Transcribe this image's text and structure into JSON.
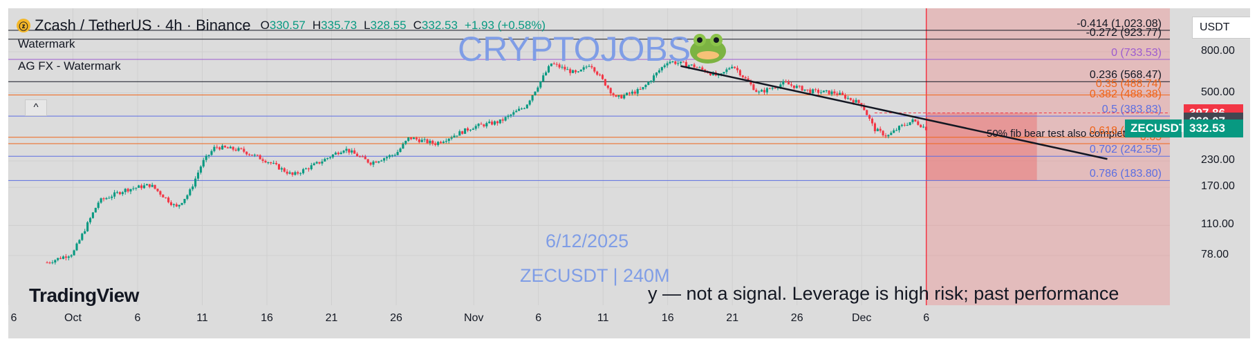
{
  "header": {
    "symbol": "Zcash / TetherUS · 4h · Binance",
    "coin_icon": "zcash-coin-icon",
    "ohlc": [
      {
        "key": "O",
        "value": "330.57"
      },
      {
        "key": "H",
        "value": "335.73"
      },
      {
        "key": "L",
        "value": "328.55"
      },
      {
        "key": "C",
        "value": "332.53"
      },
      {
        "key": "",
        "value": "+1.93 (+0.58%)"
      }
    ]
  },
  "indicators": [
    "Watermark",
    "AG FX - Watermark"
  ],
  "collapse_glyph": "^",
  "watermarks": {
    "brand": "CRYPTOJOBS",
    "brand_icon": "frog-icon",
    "date": "6/12/2025",
    "pair": "ZECUSDT | 240M",
    "disclaimer": "y — not a signal. Leverage is high risk; past performance",
    "logo": "TradingView"
  },
  "currency_button": "USDT",
  "colors": {
    "up": "#089981",
    "down": "#f23645",
    "fib_blue": "#5b6ee1",
    "fib_orange": "#f06418",
    "fib_purple": "#9c5bd0",
    "zone": "#f08080"
  },
  "badges": [
    {
      "label": "397.86",
      "value": 397.86,
      "color": "#f23645"
    },
    {
      "label": "360.07",
      "value": 360.07,
      "color": "#434651"
    },
    {
      "label": "332.53",
      "value": 332.53,
      "color": "#089981",
      "tag": "ZECUSDT"
    }
  ],
  "annotation": "50% fib bear test also completed",
  "chart_data": {
    "type": "candlestick",
    "y_scale": "log",
    "y_ticks": [
      {
        "label": "800.00",
        "value": 800
      },
      {
        "label": "500.00",
        "value": 500
      },
      {
        "label": "230.00",
        "value": 230
      },
      {
        "label": "170.00",
        "value": 170
      },
      {
        "label": "110.00",
        "value": 110
      },
      {
        "label": "78.00",
        "value": 78
      }
    ],
    "x_ticks": [
      "6",
      "Oct",
      "6",
      "11",
      "16",
      "21",
      "26",
      "Nov",
      "6",
      "11",
      "16",
      "21",
      "26",
      "Dec",
      "6"
    ],
    "x_dates": [
      "2025-09-26",
      "2025-10-01",
      "2025-10-06",
      "2025-10-11",
      "2025-10-16",
      "2025-10-21",
      "2025-10-26",
      "2025-11-01",
      "2025-11-06",
      "2025-11-11",
      "2025-11-16",
      "2025-11-21",
      "2025-11-26",
      "2025-12-01",
      "2025-12-06"
    ],
    "last_date": "2025-12-06",
    "fib_levels": [
      {
        "label": "-0.414 (1,023.08)",
        "value": 1023.08,
        "color": "#131722"
      },
      {
        "label": "-0.272 (923.77)",
        "value": 923.77,
        "color": "#131722"
      },
      {
        "label": "0 (733.53)",
        "value": 733.53,
        "color": "#9c5bd0"
      },
      {
        "label": "0.236 (568.47)",
        "value": 568.47,
        "color": "#131722"
      },
      {
        "label": "0.35 (488.74)",
        "value": 488.74,
        "color": "#f06418"
      },
      {
        "label": "0.382 (488.38)",
        "value": 488.38,
        "color": "#f06418"
      },
      {
        "label": "0.5 (383.83)",
        "value": 383.83,
        "color": "#5b6ee1"
      },
      {
        "label": "0.618 (301.30)",
        "value": 301.3,
        "color": "#f06418"
      },
      {
        "label": "0.65",
        "value": 280,
        "color": "#f06418"
      },
      {
        "label": "0.702 (242.55)",
        "value": 242.55,
        "color": "#5b6ee1"
      },
      {
        "label": "0.786 (183.80)",
        "value": 183.8,
        "color": "#5b6ee1"
      }
    ],
    "trendline": [
      {
        "date": "2025-11-17",
        "value": 680
      },
      {
        "date": "2025-12-20",
        "value": 235
      }
    ],
    "price_path": [
      {
        "date": "2025-09-29",
        "value": 72
      },
      {
        "date": "2025-10-01",
        "value": 80
      },
      {
        "date": "2025-10-03",
        "value": 145
      },
      {
        "date": "2025-10-05",
        "value": 165
      },
      {
        "date": "2025-10-07",
        "value": 175
      },
      {
        "date": "2025-10-09",
        "value": 135
      },
      {
        "date": "2025-10-10",
        "value": 160
      },
      {
        "date": "2025-10-11",
        "value": 225
      },
      {
        "date": "2025-10-12",
        "value": 270
      },
      {
        "date": "2025-10-14",
        "value": 260
      },
      {
        "date": "2025-10-16",
        "value": 230
      },
      {
        "date": "2025-10-18",
        "value": 195
      },
      {
        "date": "2025-10-20",
        "value": 225
      },
      {
        "date": "2025-10-22",
        "value": 265
      },
      {
        "date": "2025-10-24",
        "value": 225
      },
      {
        "date": "2025-10-26",
        "value": 250
      },
      {
        "date": "2025-10-27",
        "value": 300
      },
      {
        "date": "2025-10-29",
        "value": 280
      },
      {
        "date": "2025-11-01",
        "value": 340
      },
      {
        "date": "2025-11-03",
        "value": 360
      },
      {
        "date": "2025-11-05",
        "value": 430
      },
      {
        "date": "2025-11-07",
        "value": 700
      },
      {
        "date": "2025-11-09",
        "value": 620
      },
      {
        "date": "2025-11-10",
        "value": 700
      },
      {
        "date": "2025-11-12",
        "value": 470
      },
      {
        "date": "2025-11-14",
        "value": 520
      },
      {
        "date": "2025-11-16",
        "value": 720
      },
      {
        "date": "2025-11-18",
        "value": 680
      },
      {
        "date": "2025-11-20",
        "value": 600
      },
      {
        "date": "2025-11-21",
        "value": 690
      },
      {
        "date": "2025-11-23",
        "value": 500
      },
      {
        "date": "2025-11-25",
        "value": 560
      },
      {
        "date": "2025-11-27",
        "value": 510
      },
      {
        "date": "2025-11-29",
        "value": 500
      },
      {
        "date": "2025-12-01",
        "value": 440
      },
      {
        "date": "2025-12-02",
        "value": 330
      },
      {
        "date": "2025-12-03",
        "value": 305
      },
      {
        "date": "2025-12-04",
        "value": 340
      },
      {
        "date": "2025-12-05",
        "value": 365
      },
      {
        "date": "2025-12-06",
        "value": 332.53
      }
    ],
    "grid": true
  }
}
